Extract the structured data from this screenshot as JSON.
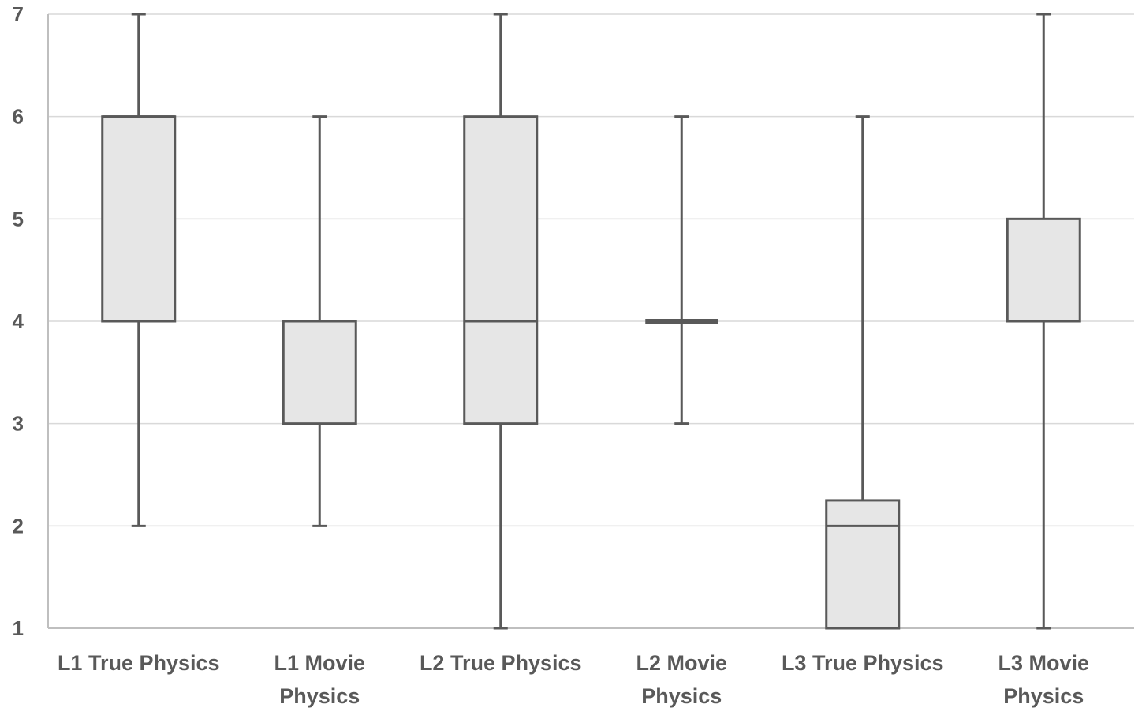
{
  "chart_data": {
    "type": "box",
    "title": "",
    "xlabel": "",
    "ylabel": "",
    "ylim": [
      1,
      7
    ],
    "yticks": [
      "1",
      "2",
      "3",
      "4",
      "5",
      "6",
      "7"
    ],
    "grid": true,
    "legend": "none",
    "colors": {
      "box_fill": "#e6e6e6",
      "stroke": "#595959",
      "grid": "#d9d9d9",
      "text": "#595959"
    },
    "categories": [
      [
        "L1 True Physics"
      ],
      [
        "L1 Movie",
        "Physics"
      ],
      [
        "L2 True Physics"
      ],
      [
        "L2 Movie",
        "Physics"
      ],
      [
        "L3 True Physics"
      ],
      [
        "L3 Movie",
        "Physics"
      ]
    ],
    "boxes": [
      {
        "min": 2,
        "q1": 4,
        "median": 6,
        "q3": 6,
        "max": 7
      },
      {
        "min": 2,
        "q1": 3,
        "median": 4,
        "q3": 4,
        "max": 6
      },
      {
        "min": 1,
        "q1": 3,
        "median": 4,
        "q3": 6,
        "max": 7
      },
      {
        "min": 3,
        "q1": 4,
        "median": 4,
        "q3": 4,
        "max": 6
      },
      {
        "min": 1,
        "q1": 1,
        "median": 2,
        "q3": 2.25,
        "max": 6
      },
      {
        "min": 1,
        "q1": 4,
        "median": 4,
        "q3": 5,
        "max": 7
      }
    ]
  }
}
